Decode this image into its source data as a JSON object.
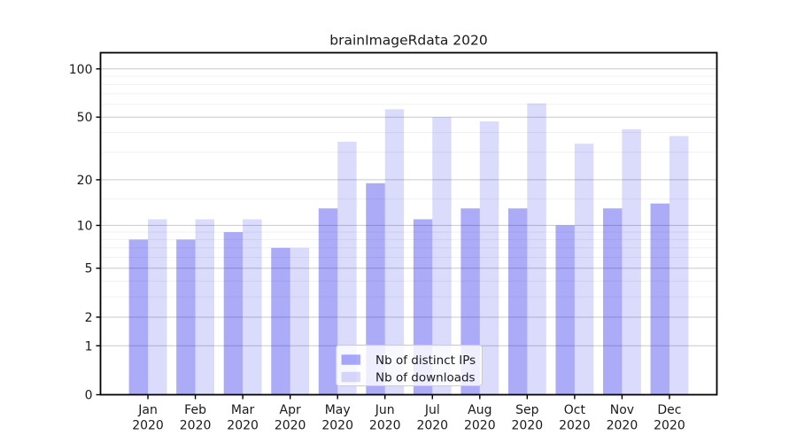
{
  "page": {
    "background": "#ffffff"
  },
  "chart_data": {
    "type": "bar",
    "title": "brainImageRdata 2020",
    "x": {
      "categories": [
        "Jan",
        "Feb",
        "Mar",
        "Apr",
        "May",
        "Jun",
        "Jul",
        "Aug",
        "Sep",
        "Oct",
        "Nov",
        "Dec"
      ],
      "year_label": "2020"
    },
    "series": [
      {
        "name": "Nb of distinct IPs",
        "color": "rgba(13,13,235,0.35)",
        "values": [
          8,
          8,
          9,
          7,
          13,
          19,
          11,
          13,
          13,
          10,
          13,
          14
        ]
      },
      {
        "name": "Nb of downloads",
        "color": "rgba(13,13,235,0.15)",
        "values": [
          11,
          11,
          11,
          7,
          35,
          56,
          50,
          47,
          61,
          34,
          42,
          38
        ]
      }
    ],
    "y_axis": {
      "scale": "log1p",
      "ticks": [
        0,
        1,
        2,
        5,
        10,
        20,
        50,
        100
      ],
      "minor_gridlines": [
        3,
        4,
        6,
        7,
        8,
        9,
        15,
        30,
        40,
        60,
        70,
        80,
        90
      ],
      "max_value": 126
    },
    "legend": {
      "position": "lower center"
    },
    "grid": true,
    "bar_width_fraction": 0.4,
    "colors": {
      "axis": "#000000",
      "grid_major": "#c9c9c9",
      "grid_minor": "#f0f0f0",
      "legend_bg": "rgba(255,255,255,0.8)",
      "legend_border": "#cccccc",
      "text": "#1a1a1a"
    }
  }
}
